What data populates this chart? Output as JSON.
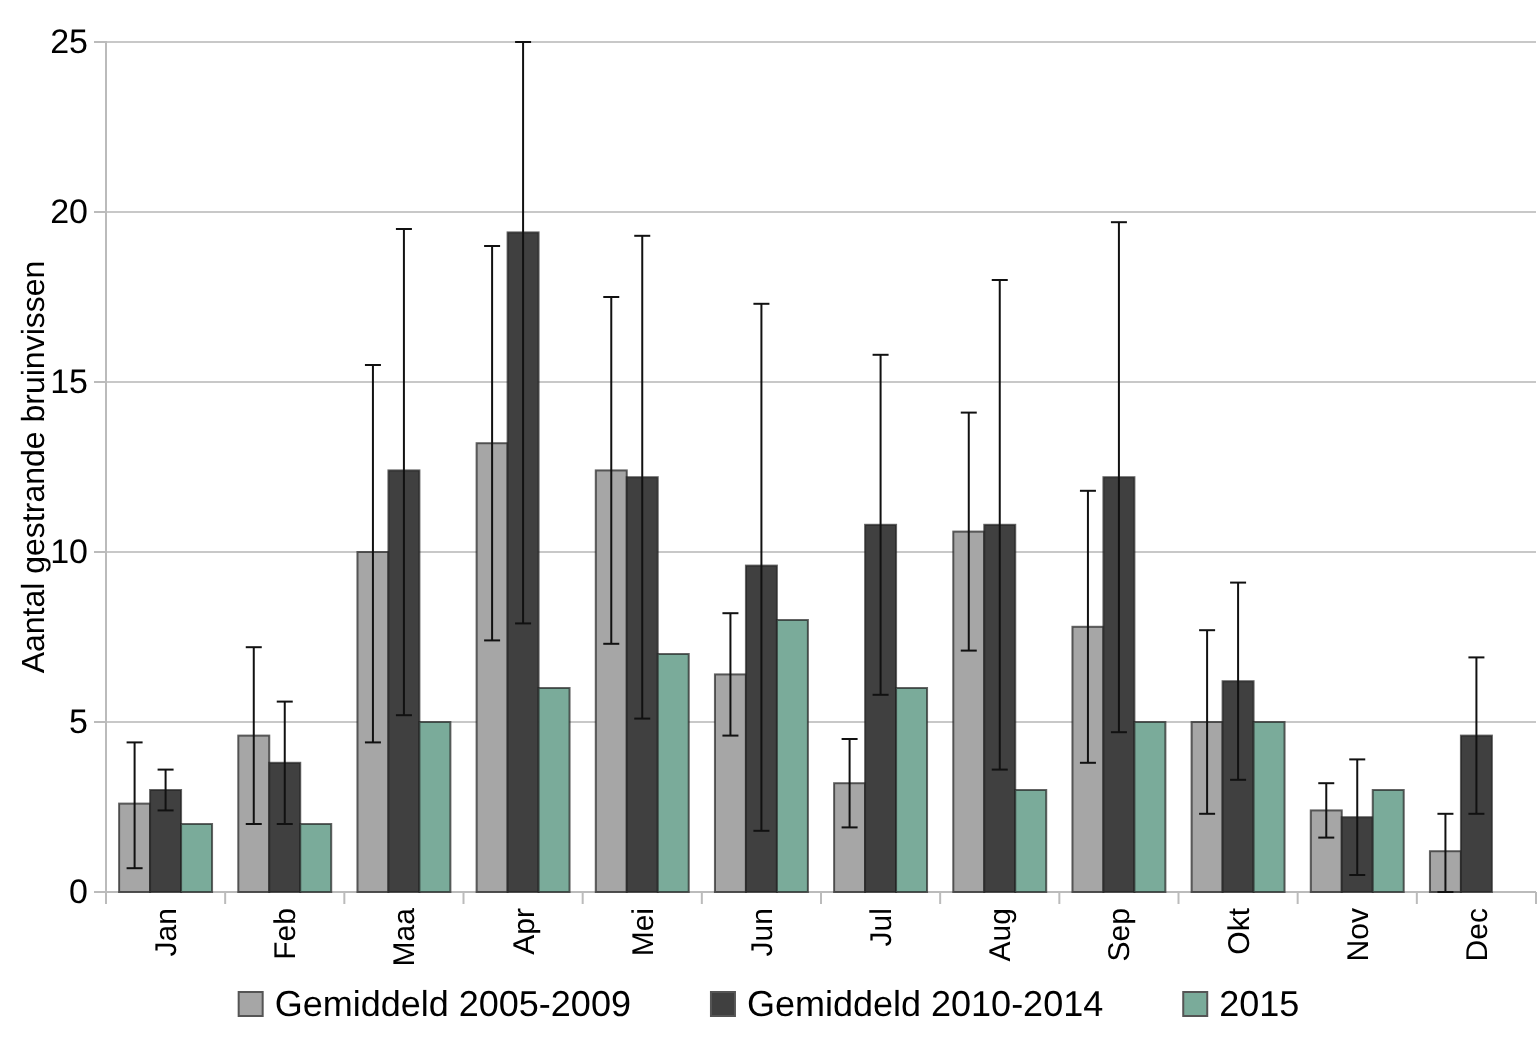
{
  "chart_data": {
    "type": "bar",
    "ylabel": "Aantal gestrande bruinvissen",
    "categories": [
      "Jan",
      "Feb",
      "Maa",
      "Apr",
      "Mei",
      "Jun",
      "Jul",
      "Aug",
      "Sep",
      "Okt",
      "Nov",
      "Dec"
    ],
    "series": [
      {
        "name": "Gemiddeld 2005-2009",
        "color": "#a6a6a6",
        "values": [
          2.6,
          4.6,
          10.0,
          13.2,
          12.4,
          6.4,
          3.2,
          10.6,
          7.8,
          5.0,
          2.4,
          1.2
        ],
        "errors": [
          [
            0.7,
            4.4
          ],
          [
            2.0,
            7.2
          ],
          [
            4.4,
            15.5
          ],
          [
            7.4,
            19.0
          ],
          [
            7.3,
            17.5
          ],
          [
            4.6,
            8.2
          ],
          [
            1.9,
            4.5
          ],
          [
            7.1,
            14.1
          ],
          [
            3.8,
            11.8
          ],
          [
            2.3,
            7.7
          ],
          [
            1.6,
            3.2
          ],
          [
            0,
            2.3
          ]
        ]
      },
      {
        "name": "Gemiddeld 2010-2014",
        "color": "#404040",
        "values": [
          3.0,
          3.8,
          12.4,
          19.4,
          12.2,
          9.6,
          10.8,
          10.8,
          12.2,
          6.2,
          2.2,
          4.6
        ],
        "errors": [
          [
            2.4,
            3.6
          ],
          [
            2.0,
            5.6
          ],
          [
            5.2,
            19.5
          ],
          [
            7.9,
            25
          ],
          [
            5.1,
            19.3
          ],
          [
            1.8,
            17.3
          ],
          [
            5.8,
            15.8
          ],
          [
            3.6,
            18.0
          ],
          [
            4.7,
            19.7
          ],
          [
            3.3,
            9.1
          ],
          [
            0.5,
            3.9
          ],
          [
            2.3,
            6.9
          ]
        ]
      },
      {
        "name": "2015",
        "color": "#7aab9a",
        "values": [
          2,
          2,
          5,
          6,
          7,
          8,
          6,
          3,
          5,
          5,
          3,
          null
        ]
      }
    ],
    "ylim": [
      0,
      25
    ],
    "yticks": [
      0,
      5,
      10,
      15,
      20,
      25
    ],
    "grid": "y",
    "legend": "bottom"
  }
}
